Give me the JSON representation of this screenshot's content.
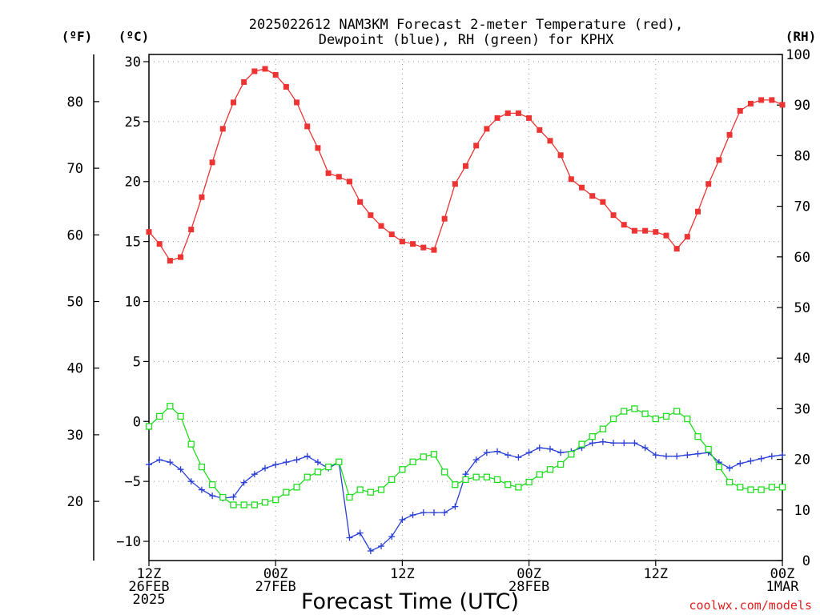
{
  "chart_data": {
    "type": "line",
    "title_line1": "2025022612 NAM3KM Forecast 2-meter Temperature (red),",
    "title_line2": "Dewpoint (blue), RH (green) for KPHX",
    "xlabel": "Forecast Time (UTC)",
    "credit": "coolwx.com/models",
    "unit_labels": {
      "fahrenheit": "(ºF)",
      "celsius": "(ºC)",
      "rh": "(RH)"
    },
    "x_ticks": [
      {
        "hour": 0,
        "lines": [
          "12Z",
          "26FEB",
          "2025"
        ]
      },
      {
        "hour": 12,
        "lines": [
          "00Z",
          "27FEB"
        ]
      },
      {
        "hour": 24,
        "lines": [
          "12Z"
        ]
      },
      {
        "hour": 36,
        "lines": [
          "00Z",
          "28FEB"
        ]
      },
      {
        "hour": 48,
        "lines": [
          "12Z"
        ]
      },
      {
        "hour": 60,
        "lines": [
          "00Z",
          "1MAR"
        ]
      }
    ],
    "xlim": [
      0,
      60
    ],
    "ylim_c": [
      -11.6,
      30.6
    ],
    "ylim_rh": [
      0,
      100
    ],
    "y_ticks_c": [
      -10,
      -5,
      0,
      5,
      10,
      15,
      20,
      25,
      30
    ],
    "y_ticks_f": [
      20,
      30,
      40,
      50,
      60,
      70,
      80
    ],
    "y_ticks_rh": [
      0,
      10,
      20,
      30,
      40,
      50,
      60,
      70,
      80,
      90,
      100
    ],
    "colors": {
      "temperature": "#ee3333",
      "dewpoint": "#2a3fd6",
      "rh": "#22dd22",
      "grid": "#999999"
    },
    "series": [
      {
        "kind": "temperature",
        "units": "°C",
        "marker": "filled-square",
        "x_start": 0,
        "x_step": 1,
        "values": [
          15.8,
          14.8,
          13.4,
          13.7,
          16.0,
          18.7,
          21.6,
          24.4,
          26.6,
          28.3,
          29.2,
          29.4,
          28.9,
          27.9,
          26.6,
          24.6,
          22.8,
          20.7,
          20.4,
          20.0,
          18.3,
          17.2,
          16.3,
          15.6,
          15.0,
          14.8,
          14.5,
          14.3,
          16.9,
          19.8,
          21.3,
          23.0,
          24.4,
          25.3,
          25.7,
          25.7,
          25.3,
          24.3,
          23.4,
          22.2,
          20.2,
          19.5,
          18.8,
          18.3,
          17.2,
          16.4,
          15.9,
          15.9,
          15.8,
          15.5,
          14.4,
          15.4,
          17.5,
          19.8,
          21.8,
          23.9,
          25.9,
          26.5,
          26.8,
          26.8,
          26.4
        ]
      },
      {
        "kind": "dewpoint",
        "units": "°C",
        "marker": "plus",
        "x_start": 0,
        "x_step": 1,
        "values": [
          -3.6,
          -3.2,
          -3.4,
          -4.0,
          -5.0,
          -5.7,
          -6.2,
          -6.4,
          -6.3,
          -5.1,
          -4.4,
          -3.9,
          -3.6,
          -3.4,
          -3.2,
          -2.9,
          -3.4,
          -3.9,
          -3.4,
          -9.7,
          -9.3,
          -10.8,
          -10.4,
          -9.6,
          -8.2,
          -7.8,
          -7.6,
          -7.6,
          -7.6,
          -7.1,
          -4.4,
          -3.2,
          -2.6,
          -2.5,
          -2.8,
          -3.0,
          -2.6,
          -2.2,
          -2.3,
          -2.6,
          -2.5,
          -2.2,
          -1.8,
          -1.7,
          -1.8,
          -1.8,
          -1.8,
          -2.2,
          -2.8,
          -2.9,
          -2.9,
          -2.8,
          -2.7,
          -2.6,
          -3.4,
          -3.9,
          -3.5,
          -3.3,
          -3.1,
          -2.9,
          -2.8
        ]
      },
      {
        "kind": "rh",
        "units": "%",
        "marker": "open-square",
        "x_start": 0,
        "x_step": 1,
        "values": [
          26.5,
          28.5,
          30.5,
          28.5,
          23.0,
          18.5,
          15.0,
          12.5,
          11.0,
          11.0,
          11.0,
          11.5,
          12.0,
          13.5,
          14.5,
          16.5,
          17.5,
          18.5,
          19.5,
          12.5,
          14.0,
          13.5,
          14.0,
          16.0,
          18.0,
          19.5,
          20.5,
          21.0,
          17.5,
          15.0,
          16.0,
          16.5,
          16.5,
          16.0,
          15.0,
          14.5,
          15.5,
          17.0,
          18.0,
          19.0,
          21.0,
          23.0,
          24.5,
          26.0,
          28.0,
          29.5,
          30.0,
          29.0,
          28.0,
          28.5,
          29.5,
          28.0,
          24.5,
          22.0,
          18.5,
          15.5,
          14.5,
          14.0,
          14.0,
          14.5,
          14.5
        ]
      }
    ]
  }
}
